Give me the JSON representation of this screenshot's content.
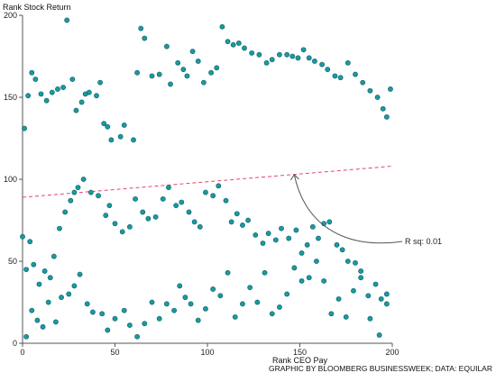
{
  "chart_data": {
    "type": "scatter",
    "title": "",
    "xlabel": "Rank CEO Pay",
    "ylabel": "Rank Stock Return",
    "xlim": [
      0,
      200
    ],
    "ylim": [
      0,
      200
    ],
    "xticks": [
      "0",
      "50",
      "100",
      "150",
      "200"
    ],
    "yticks": [
      "0",
      "50",
      "100",
      "150",
      "200"
    ],
    "point_color": "#1a9aa0",
    "point_stroke": "#0a5c60",
    "trend_color": "#e8436a",
    "trendline": {
      "x": [
        0,
        200
      ],
      "y": [
        89,
        108
      ]
    },
    "annotation": {
      "text": "R sq: 0.01",
      "target": [
        147,
        105
      ]
    },
    "credit": "GRAPHIC BY BLOOMBERG BUSINESSWEEK; DATA: EQUILAR",
    "points": [
      [
        1,
        131
      ],
      [
        3,
        151
      ],
      [
        5,
        165
      ],
      [
        7,
        161
      ],
      [
        10,
        152
      ],
      [
        13,
        148
      ],
      [
        16,
        153
      ],
      [
        19,
        155
      ],
      [
        22,
        156
      ],
      [
        24,
        197
      ],
      [
        27,
        161
      ],
      [
        29,
        142
      ],
      [
        32,
        147
      ],
      [
        34,
        152
      ],
      [
        36,
        153
      ],
      [
        40,
        151
      ],
      [
        42,
        159
      ],
      [
        44,
        134
      ],
      [
        46,
        132
      ],
      [
        48,
        124
      ],
      [
        53,
        126
      ],
      [
        55,
        133
      ],
      [
        60,
        124
      ],
      [
        62,
        165
      ],
      [
        64,
        192
      ],
      [
        66,
        186
      ],
      [
        70,
        163
      ],
      [
        74,
        164
      ],
      [
        78,
        181
      ],
      [
        80,
        158
      ],
      [
        84,
        171
      ],
      [
        87,
        167
      ],
      [
        89,
        163
      ],
      [
        92,
        178
      ],
      [
        95,
        172
      ],
      [
        98,
        159
      ],
      [
        102,
        165
      ],
      [
        105,
        168
      ],
      [
        108,
        193
      ],
      [
        111,
        184
      ],
      [
        114,
        182
      ],
      [
        117,
        183
      ],
      [
        120,
        180
      ],
      [
        124,
        177
      ],
      [
        128,
        176
      ],
      [
        132,
        171
      ],
      [
        135,
        173
      ],
      [
        139,
        176
      ],
      [
        143,
        176
      ],
      [
        146,
        175
      ],
      [
        149,
        174
      ],
      [
        152,
        179
      ],
      [
        155,
        174
      ],
      [
        158,
        172
      ],
      [
        162,
        170
      ],
      [
        165,
        167
      ],
      [
        169,
        163
      ],
      [
        172,
        162
      ],
      [
        176,
        171
      ],
      [
        180,
        164
      ],
      [
        184,
        159
      ],
      [
        188,
        154
      ],
      [
        192,
        150
      ],
      [
        195,
        143
      ],
      [
        197,
        138
      ],
      [
        199,
        155
      ],
      [
        0,
        65
      ],
      [
        2,
        45
      ],
      [
        4,
        62
      ],
      [
        6,
        48
      ],
      [
        9,
        36
      ],
      [
        12,
        44
      ],
      [
        15,
        40
      ],
      [
        17,
        53
      ],
      [
        20,
        70
      ],
      [
        23,
        80
      ],
      [
        26,
        87
      ],
      [
        28,
        92
      ],
      [
        30,
        95
      ],
      [
        33,
        100
      ],
      [
        37,
        92
      ],
      [
        41,
        90
      ],
      [
        45,
        78
      ],
      [
        47,
        84
      ],
      [
        50,
        73
      ],
      [
        54,
        68
      ],
      [
        58,
        71
      ],
      [
        61,
        88
      ],
      [
        65,
        80
      ],
      [
        68,
        76
      ],
      [
        72,
        77
      ],
      [
        76,
        88
      ],
      [
        79,
        95
      ],
      [
        83,
        84
      ],
      [
        86,
        86
      ],
      [
        90,
        80
      ],
      [
        93,
        74
      ],
      [
        96,
        71
      ],
      [
        99,
        92
      ],
      [
        103,
        90
      ],
      [
        106,
        96
      ],
      [
        110,
        87
      ],
      [
        113,
        74
      ],
      [
        116,
        79
      ],
      [
        119,
        72
      ],
      [
        122,
        75
      ],
      [
        126,
        66
      ],
      [
        130,
        61
      ],
      [
        133,
        67
      ],
      [
        137,
        63
      ],
      [
        140,
        70
      ],
      [
        144,
        64
      ],
      [
        148,
        69
      ],
      [
        151,
        55
      ],
      [
        154,
        60
      ],
      [
        157,
        71
      ],
      [
        160,
        64
      ],
      [
        163,
        73
      ],
      [
        166,
        74
      ],
      [
        170,
        60
      ],
      [
        173,
        57
      ],
      [
        176,
        50
      ],
      [
        180,
        49
      ],
      [
        183,
        40
      ],
      [
        187,
        29
      ],
      [
        191,
        36
      ],
      [
        194,
        27
      ],
      [
        197,
        30
      ],
      [
        2,
        4
      ],
      [
        5,
        20
      ],
      [
        8,
        14
      ],
      [
        11,
        10
      ],
      [
        14,
        25
      ],
      [
        18,
        13
      ],
      [
        21,
        28
      ],
      [
        25,
        30
      ],
      [
        28,
        35
      ],
      [
        31,
        42
      ],
      [
        35,
        24
      ],
      [
        38,
        19
      ],
      [
        43,
        18
      ],
      [
        46,
        8
      ],
      [
        50,
        15
      ],
      [
        55,
        20
      ],
      [
        58,
        11
      ],
      [
        62,
        4
      ],
      [
        66,
        12
      ],
      [
        70,
        25
      ],
      [
        74,
        15
      ],
      [
        78,
        24
      ],
      [
        82,
        20
      ],
      [
        85,
        35
      ],
      [
        88,
        28
      ],
      [
        91,
        24
      ],
      [
        95,
        14
      ],
      [
        99,
        21
      ],
      [
        103,
        33
      ],
      [
        107,
        29
      ],
      [
        111,
        43
      ],
      [
        115,
        16
      ],
      [
        119,
        24
      ],
      [
        123,
        34
      ],
      [
        127,
        25
      ],
      [
        131,
        43
      ],
      [
        135,
        18
      ],
      [
        139,
        22
      ],
      [
        143,
        30
      ],
      [
        147,
        46
      ],
      [
        151,
        38
      ],
      [
        155,
        40
      ],
      [
        159,
        50
      ],
      [
        163,
        38
      ],
      [
        167,
        18
      ],
      [
        171,
        27
      ],
      [
        175,
        16
      ],
      [
        179,
        32
      ],
      [
        183,
        44
      ],
      [
        188,
        15
      ],
      [
        193,
        5
      ],
      [
        197,
        24
      ]
    ]
  }
}
